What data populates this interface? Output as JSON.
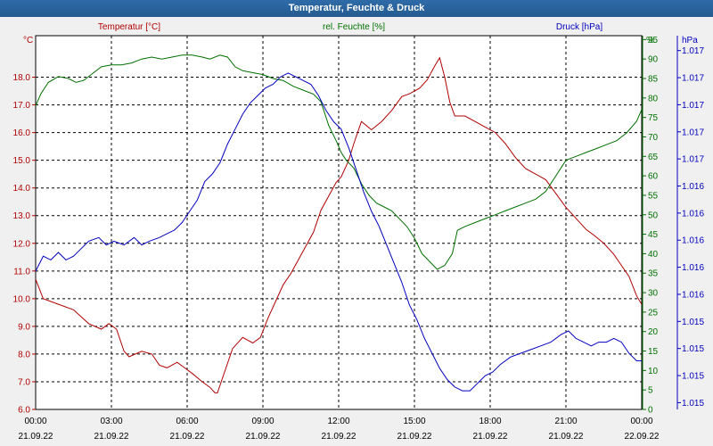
{
  "window": {
    "title": "Temperatur, Feuchte & Druck"
  },
  "chart_data": {
    "type": "line",
    "title": "Temperatur, Feuchte & Druck",
    "colors": {
      "temperature": "#b00000",
      "humidity": "#007000",
      "pressure": "#0000c0",
      "grid": "#000000",
      "plot_bg": "#ffffff"
    },
    "axes": {
      "temperature": {
        "label": "Temperatur [°C]",
        "unit": "°C",
        "ylim": [
          6.0,
          19.5
        ],
        "ticks": [
          "6.0",
          "7.0",
          "8.0",
          "9.0",
          "10.0",
          "11.0",
          "12.0",
          "13.0",
          "14.0",
          "15.0",
          "16.0",
          "17.0",
          "18.0"
        ]
      },
      "humidity": {
        "label": "rel. Feuchte [%]",
        "unit": "%",
        "ylim": [
          0,
          96
        ],
        "ticks": [
          "0",
          "5",
          "10",
          "15",
          "20",
          "25",
          "30",
          "35",
          "40",
          "45",
          "50",
          "55",
          "60",
          "65",
          "70",
          "75",
          "80",
          "85",
          "90",
          "95"
        ]
      },
      "pressure": {
        "label": "Druck [hPa]",
        "unit": "hPa",
        "ticks": [
          "1.015",
          "1.015",
          "1.015",
          "1.015",
          "1.016",
          "1.016",
          "1.016",
          "1.016",
          "1.016",
          "1.017",
          "1.017",
          "1.017",
          "1.017",
          "1.017"
        ]
      }
    },
    "x_ticks": [
      {
        "time": "00:00",
        "date": "21.09.22"
      },
      {
        "time": "03:00",
        "date": "21.09.22"
      },
      {
        "time": "06:00",
        "date": "21.09.22"
      },
      {
        "time": "09:00",
        "date": "21.09.22"
      },
      {
        "time": "12:00",
        "date": "21.09.22"
      },
      {
        "time": "15:00",
        "date": "21.09.22"
      },
      {
        "time": "18:00",
        "date": "21.09.22"
      },
      {
        "time": "21:00",
        "date": "21.09.22"
      },
      {
        "time": "00:00",
        "date": "22.09.22"
      }
    ],
    "xlim_hours": [
      0,
      24
    ],
    "grid": true,
    "series": [
      {
        "name": "Temperatur [°C]",
        "axis": "temperature",
        "color": "#b00000",
        "points": [
          [
            0,
            10.7
          ],
          [
            0.3,
            10.0
          ],
          [
            0.9,
            9.8
          ],
          [
            1.5,
            9.6
          ],
          [
            2.1,
            9.1
          ],
          [
            2.6,
            8.9
          ],
          [
            2.9,
            9.1
          ],
          [
            3.2,
            8.9
          ],
          [
            3.5,
            8.1
          ],
          [
            3.7,
            7.9
          ],
          [
            4.2,
            8.1
          ],
          [
            4.6,
            8.0
          ],
          [
            4.9,
            7.6
          ],
          [
            5.2,
            7.5
          ],
          [
            5.6,
            7.7
          ],
          [
            5.9,
            7.5
          ],
          [
            6.2,
            7.3
          ],
          [
            6.6,
            7.0
          ],
          [
            6.9,
            6.8
          ],
          [
            7.1,
            6.6
          ],
          [
            7.2,
            6.6
          ],
          [
            7.5,
            7.4
          ],
          [
            7.8,
            8.2
          ],
          [
            8.2,
            8.6
          ],
          [
            8.6,
            8.4
          ],
          [
            8.9,
            8.6
          ],
          [
            9.2,
            9.3
          ],
          [
            9.5,
            9.9
          ],
          [
            9.8,
            10.5
          ],
          [
            10.1,
            10.9
          ],
          [
            10.4,
            11.4
          ],
          [
            10.7,
            11.9
          ],
          [
            11.0,
            12.4
          ],
          [
            11.3,
            13.2
          ],
          [
            11.6,
            13.7
          ],
          [
            11.9,
            14.2
          ],
          [
            12.1,
            14.4
          ],
          [
            12.4,
            15.0
          ],
          [
            12.6,
            15.6
          ],
          [
            12.9,
            16.4
          ],
          [
            13.3,
            16.1
          ],
          [
            13.7,
            16.4
          ],
          [
            14.1,
            16.8
          ],
          [
            14.5,
            17.3
          ],
          [
            14.8,
            17.4
          ],
          [
            15.2,
            17.6
          ],
          [
            15.5,
            17.9
          ],
          [
            15.8,
            18.4
          ],
          [
            16.0,
            18.7
          ],
          [
            16.2,
            18.0
          ],
          [
            16.4,
            17.1
          ],
          [
            16.6,
            16.6
          ],
          [
            17.0,
            16.6
          ],
          [
            17.4,
            16.4
          ],
          [
            17.8,
            16.2
          ],
          [
            18.2,
            16.0
          ],
          [
            18.6,
            15.6
          ],
          [
            19.0,
            15.1
          ],
          [
            19.4,
            14.7
          ],
          [
            19.8,
            14.5
          ],
          [
            20.2,
            14.3
          ],
          [
            20.6,
            13.8
          ],
          [
            21.0,
            13.3
          ],
          [
            21.4,
            12.9
          ],
          [
            21.8,
            12.5
          ],
          [
            22.1,
            12.3
          ],
          [
            22.5,
            12.0
          ],
          [
            22.9,
            11.6
          ],
          [
            23.2,
            11.2
          ],
          [
            23.5,
            10.8
          ],
          [
            23.8,
            10.1
          ],
          [
            24,
            9.8
          ]
        ]
      },
      {
        "name": "rel. Feuchte [%]",
        "axis": "humidity",
        "color": "#007000",
        "points": [
          [
            0,
            78
          ],
          [
            0.2,
            81
          ],
          [
            0.5,
            84
          ],
          [
            0.9,
            85.5
          ],
          [
            1.3,
            85
          ],
          [
            1.6,
            84
          ],
          [
            1.9,
            84.5
          ],
          [
            2.2,
            86
          ],
          [
            2.6,
            88
          ],
          [
            3.0,
            88.5
          ],
          [
            3.4,
            88.5
          ],
          [
            3.8,
            89
          ],
          [
            4.2,
            90
          ],
          [
            4.6,
            90.5
          ],
          [
            5.0,
            90
          ],
          [
            5.4,
            90.5
          ],
          [
            5.8,
            91
          ],
          [
            6.2,
            91
          ],
          [
            6.6,
            90.5
          ],
          [
            6.9,
            90
          ],
          [
            7.3,
            91
          ],
          [
            7.6,
            90.5
          ],
          [
            7.9,
            88
          ],
          [
            8.2,
            87
          ],
          [
            8.6,
            86.5
          ],
          [
            9.0,
            86
          ],
          [
            9.4,
            85
          ],
          [
            9.8,
            84.5
          ],
          [
            10.2,
            83
          ],
          [
            10.6,
            82
          ],
          [
            11.0,
            81
          ],
          [
            11.3,
            79
          ],
          [
            11.6,
            73
          ],
          [
            11.9,
            69
          ],
          [
            12.1,
            66
          ],
          [
            12.3,
            64
          ],
          [
            12.6,
            62
          ],
          [
            12.9,
            58
          ],
          [
            13.2,
            55
          ],
          [
            13.5,
            53
          ],
          [
            13.8,
            52
          ],
          [
            14.1,
            51
          ],
          [
            14.4,
            49
          ],
          [
            14.7,
            47
          ],
          [
            15.0,
            44
          ],
          [
            15.3,
            40
          ],
          [
            15.6,
            38
          ],
          [
            15.9,
            36
          ],
          [
            16.2,
            37
          ],
          [
            16.5,
            40
          ],
          [
            16.7,
            46
          ],
          [
            17.0,
            47
          ],
          [
            17.4,
            48
          ],
          [
            17.8,
            49
          ],
          [
            18.2,
            50
          ],
          [
            18.6,
            51
          ],
          [
            19.0,
            52
          ],
          [
            19.4,
            53
          ],
          [
            19.8,
            54
          ],
          [
            20.2,
            56
          ],
          [
            20.6,
            60
          ],
          [
            21.0,
            64
          ],
          [
            21.4,
            65
          ],
          [
            21.8,
            66
          ],
          [
            22.2,
            67
          ],
          [
            22.6,
            68
          ],
          [
            23.0,
            69
          ],
          [
            23.4,
            71
          ],
          [
            23.8,
            74
          ],
          [
            24,
            77
          ]
        ]
      },
      {
        "name": "Druck [hPa]",
        "axis": "pressure",
        "color": "#0000c0",
        "points": [
          [
            0,
            0.37
          ],
          [
            0.3,
            0.41
          ],
          [
            0.6,
            0.4
          ],
          [
            0.9,
            0.42
          ],
          [
            1.2,
            0.4
          ],
          [
            1.5,
            0.41
          ],
          [
            1.8,
            0.43
          ],
          [
            2.1,
            0.45
          ],
          [
            2.5,
            0.46
          ],
          [
            2.8,
            0.44
          ],
          [
            3.1,
            0.45
          ],
          [
            3.5,
            0.44
          ],
          [
            3.9,
            0.46
          ],
          [
            4.2,
            0.44
          ],
          [
            4.5,
            0.45
          ],
          [
            4.9,
            0.46
          ],
          [
            5.2,
            0.47
          ],
          [
            5.5,
            0.48
          ],
          [
            5.8,
            0.5
          ],
          [
            6.1,
            0.53
          ],
          [
            6.4,
            0.56
          ],
          [
            6.7,
            0.61
          ],
          [
            7.0,
            0.63
          ],
          [
            7.3,
            0.66
          ],
          [
            7.6,
            0.71
          ],
          [
            7.9,
            0.75
          ],
          [
            8.2,
            0.79
          ],
          [
            8.5,
            0.82
          ],
          [
            8.8,
            0.84
          ],
          [
            9.1,
            0.86
          ],
          [
            9.4,
            0.87
          ],
          [
            9.7,
            0.89
          ],
          [
            10.0,
            0.9
          ],
          [
            10.3,
            0.89
          ],
          [
            10.6,
            0.88
          ],
          [
            10.9,
            0.87
          ],
          [
            11.2,
            0.84
          ],
          [
            11.5,
            0.8
          ],
          [
            11.8,
            0.77
          ],
          [
            12.1,
            0.75
          ],
          [
            12.4,
            0.7
          ],
          [
            12.7,
            0.64
          ],
          [
            13.0,
            0.58
          ],
          [
            13.3,
            0.53
          ],
          [
            13.6,
            0.49
          ],
          [
            13.9,
            0.44
          ],
          [
            14.2,
            0.39
          ],
          [
            14.5,
            0.34
          ],
          [
            14.8,
            0.28
          ],
          [
            15.1,
            0.24
          ],
          [
            15.4,
            0.19
          ],
          [
            15.7,
            0.15
          ],
          [
            16.0,
            0.11
          ],
          [
            16.3,
            0.08
          ],
          [
            16.6,
            0.06
          ],
          [
            16.9,
            0.05
          ],
          [
            17.2,
            0.05
          ],
          [
            17.5,
            0.07
          ],
          [
            17.8,
            0.09
          ],
          [
            18.1,
            0.1
          ],
          [
            18.4,
            0.12
          ],
          [
            18.8,
            0.14
          ],
          [
            19.2,
            0.15
          ],
          [
            19.6,
            0.16
          ],
          [
            20.0,
            0.17
          ],
          [
            20.4,
            0.18
          ],
          [
            20.8,
            0.2
          ],
          [
            21.1,
            0.21
          ],
          [
            21.4,
            0.19
          ],
          [
            21.7,
            0.18
          ],
          [
            22.0,
            0.17
          ],
          [
            22.3,
            0.18
          ],
          [
            22.6,
            0.18
          ],
          [
            22.9,
            0.19
          ],
          [
            23.2,
            0.18
          ],
          [
            23.5,
            0.15
          ],
          [
            23.8,
            0.13
          ],
          [
            24,
            0.13
          ]
        ]
      }
    ]
  }
}
